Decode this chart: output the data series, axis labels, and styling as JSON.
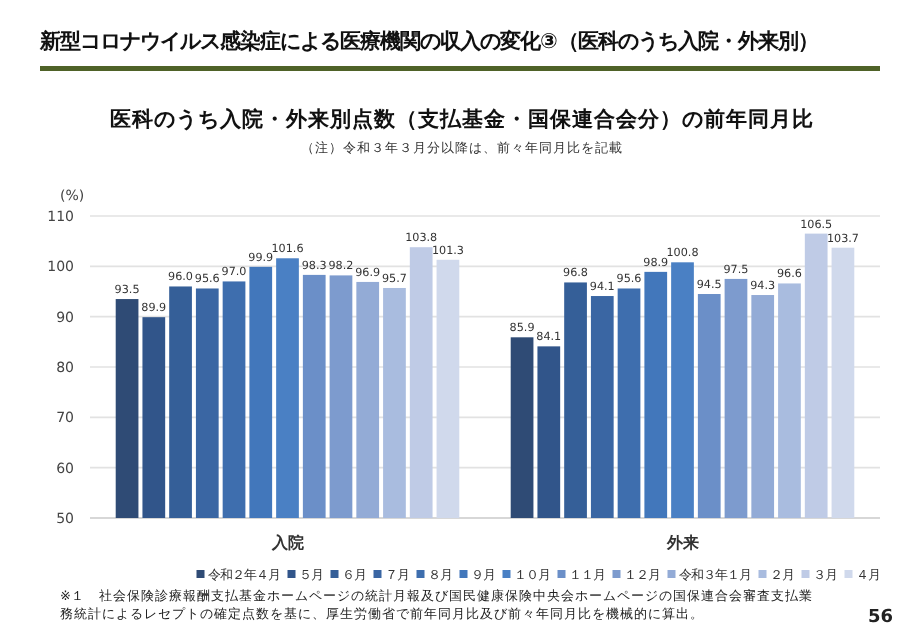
{
  "chart_data": {
    "type": "bar",
    "title": "新型コロナウイルス感染症による医療機関の収入の変化③（医科のうち入院・外来別）",
    "subtitle": "医科のうち入院・外来別点数（支払基金・国保連合会分）の前年同月比",
    "ylabel": "(%)",
    "categories": [
      "入院",
      "外来"
    ],
    "series": [
      {
        "name": "令和２年４月",
        "color": "#2f4b75",
        "values": [
          93.5,
          85.9
        ],
        "value_labels": [
          "93.5",
          "85.9"
        ]
      },
      {
        "name": "５月",
        "color": "#31558a",
        "values": [
          89.9,
          84.1
        ],
        "value_labels": [
          "89.9",
          "84.1"
        ]
      },
      {
        "name": "６月",
        "color": "#355f98",
        "values": [
          96.0,
          96.8
        ],
        "value_labels": [
          "96.0",
          "96.8"
        ]
      },
      {
        "name": "７月",
        "color": "#3a66a3",
        "values": [
          95.6,
          94.1
        ],
        "value_labels": [
          "95.6",
          "94.1"
        ]
      },
      {
        "name": "８月",
        "color": "#3e6eae",
        "values": [
          97.0,
          95.6
        ],
        "value_labels": [
          "97.0",
          "95.6"
        ]
      },
      {
        "name": "９月",
        "color": "#4277bb",
        "values": [
          99.9,
          98.9
        ],
        "value_labels": [
          "99.9",
          "98.9"
        ]
      },
      {
        "name": "１０月",
        "color": "#4a80c4",
        "values": [
          101.6,
          100.8
        ],
        "value_labels": [
          "101.6",
          "100.8"
        ]
      },
      {
        "name": "１１月",
        "color": "#6b8fc8",
        "values": [
          98.3,
          94.5
        ],
        "value_labels": [
          "98.3",
          "94.5"
        ]
      },
      {
        "name": "１２月",
        "color": "#7d9bce",
        "values": [
          98.2,
          97.5
        ],
        "value_labels": [
          "98.2",
          "97.5"
        ]
      },
      {
        "name": "令和３年１月",
        "color": "#93abd6",
        "values": [
          96.9,
          94.3
        ],
        "value_labels": [
          "96.9",
          "94.3"
        ]
      },
      {
        "name": "２月",
        "color": "#a9bcdf",
        "values": [
          95.7,
          96.6
        ],
        "value_labels": [
          "95.7",
          "96.6"
        ]
      },
      {
        "name": "３月",
        "color": "#bfcbe6",
        "values": [
          103.8,
          106.5
        ],
        "value_labels": [
          "103.8",
          "106.5"
        ]
      },
      {
        "name": "４月",
        "color": "#d0d9ec",
        "values": [
          101.3,
          103.7
        ],
        "value_labels": [
          "101.3",
          "103.7"
        ]
      }
    ],
    "ylim": [
      50,
      110
    ],
    "yticks": [
      50,
      60,
      70,
      80,
      90,
      100,
      110
    ],
    "grid": "y",
    "legend": "bottom",
    "annotations": [
      "（注）令和３年３月分以降は、前々年同月比を記載",
      "※１　社会保険診療報酬支払基金ホームページの統計月報及び国民健康保険中央会ホームページの国保連合会審査支払業務統計によるレセプトの確定点数を基に、厚生労働省で前年同月比及び前々年同月比を機械的に算出。",
      "56"
    ]
  }
}
